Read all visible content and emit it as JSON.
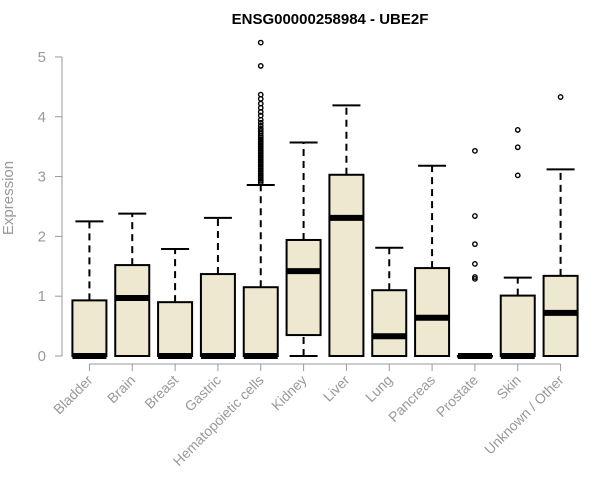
{
  "chart_data": {
    "type": "boxplot",
    "title": "ENSG00000258984 - UBE2F",
    "ylabel": "Expression",
    "xlabel": "",
    "ylim": [
      0,
      5.25
    ],
    "yticks": [
      "0",
      "1",
      "2",
      "3",
      "4",
      "5"
    ],
    "box_color": "#efe8d0",
    "categories": [
      "Bladder",
      "Brain",
      "Breast",
      "Gastric",
      "Hematopoietic cells",
      "Kidney",
      "Liver",
      "Lung",
      "Pancreas",
      "Prostate",
      "Skin",
      "Unknown / Other"
    ],
    "boxes": [
      {
        "min": 0,
        "q1": 0,
        "median": 0,
        "q3": 0.93,
        "max": 2.25,
        "outliers": []
      },
      {
        "min": 0,
        "q1": 0,
        "median": 0.97,
        "q3": 1.52,
        "max": 2.38,
        "outliers": []
      },
      {
        "min": 0,
        "q1": 0,
        "median": 0,
        "q3": 0.9,
        "max": 1.79,
        "outliers": []
      },
      {
        "min": 0,
        "q1": 0,
        "median": 0,
        "q3": 1.37,
        "max": 2.31,
        "outliers": []
      },
      {
        "min": 0,
        "q1": 0,
        "median": 0,
        "q3": 1.15,
        "max": 2.86,
        "outliers": [
          2.9,
          2.93,
          2.96,
          2.99,
          3.02,
          3.05,
          3.08,
          3.11,
          3.14,
          3.17,
          3.2,
          3.23,
          3.26,
          3.29,
          3.32,
          3.35,
          3.38,
          3.41,
          3.44,
          3.47,
          3.5,
          3.53,
          3.56,
          3.59,
          3.62,
          3.65,
          3.68,
          3.72,
          3.76,
          3.8,
          3.85,
          3.9,
          3.95,
          4.02,
          4.08,
          4.15,
          4.22,
          4.3,
          4.37,
          4.85,
          5.24
        ]
      },
      {
        "min": 0,
        "q1": 0.35,
        "median": 1.42,
        "q3": 1.94,
        "max": 3.57,
        "outliers": []
      },
      {
        "min": 0,
        "q1": 0,
        "median": 2.31,
        "q3": 3.03,
        "max": 4.19,
        "outliers": []
      },
      {
        "min": 0,
        "q1": 0,
        "median": 0.33,
        "q3": 1.1,
        "max": 1.81,
        "outliers": []
      },
      {
        "min": 0,
        "q1": 0,
        "median": 0.64,
        "q3": 1.47,
        "max": 3.18,
        "outliers": []
      },
      {
        "min": 0,
        "q1": 0,
        "median": 0,
        "q3": 0,
        "max": 0,
        "outliers": [
          1.29,
          1.32,
          1.54,
          1.87,
          2.34,
          3.43
        ]
      },
      {
        "min": 0,
        "q1": 0,
        "median": 0,
        "q3": 1.01,
        "max": 1.31,
        "outliers": [
          3.02,
          3.49,
          3.78
        ]
      },
      {
        "min": 0,
        "q1": 0,
        "median": 0.72,
        "q3": 1.34,
        "max": 3.12,
        "outliers": [
          4.33
        ]
      }
    ]
  }
}
